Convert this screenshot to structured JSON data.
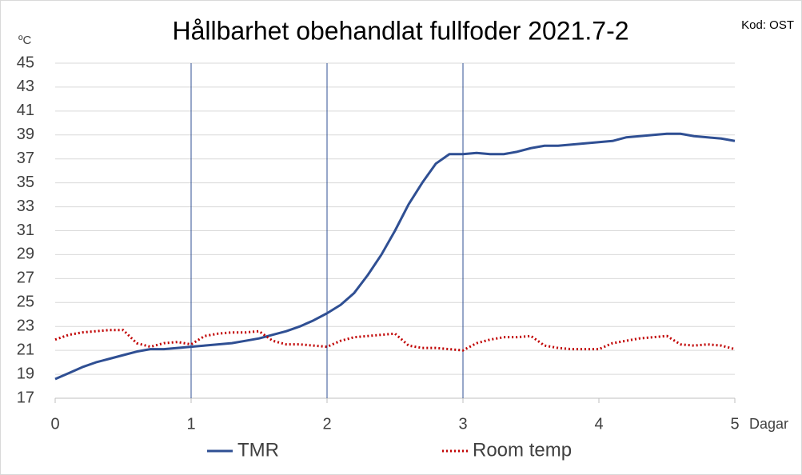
{
  "chart_data": {
    "type": "line",
    "title": "Hållbarhet obehandlat fullfoder 2021.7-2",
    "code_label": "Kod: OST",
    "y_label": "ºC",
    "x_label": "Dagar",
    "x": [
      0,
      0.1,
      0.2,
      0.3,
      0.4,
      0.5,
      0.6,
      0.7,
      0.8,
      0.9,
      1,
      1.1,
      1.2,
      1.3,
      1.4,
      1.5,
      1.6,
      1.7,
      1.8,
      1.9,
      2,
      2.1,
      2.2,
      2.3,
      2.4,
      2.5,
      2.6,
      2.7,
      2.8,
      2.9,
      3,
      3.1,
      3.2,
      3.3,
      3.4,
      3.5,
      3.6,
      3.7,
      3.8,
      3.9,
      4,
      4.1,
      4.2,
      4.3,
      4.4,
      4.5,
      4.6,
      4.7,
      4.8,
      4.9,
      5
    ],
    "series": [
      {
        "name": "TMR",
        "color": "#2f4f93",
        "dash": "solid",
        "values": [
          18.6,
          19.1,
          19.6,
          20.0,
          20.3,
          20.6,
          20.9,
          21.1,
          21.1,
          21.2,
          21.3,
          21.4,
          21.5,
          21.6,
          21.8,
          22.0,
          22.3,
          22.6,
          23.0,
          23.5,
          24.1,
          24.8,
          25.8,
          27.3,
          29.0,
          31.0,
          33.2,
          35.0,
          36.6,
          37.4,
          37.4,
          37.5,
          37.4,
          37.4,
          37.6,
          37.9,
          38.1,
          38.1,
          38.2,
          38.3,
          38.4,
          38.5,
          38.8,
          38.9,
          39.0,
          39.1,
          39.1,
          38.9,
          38.8,
          38.7,
          38.5
        ]
      },
      {
        "name": "Room temp",
        "color": "#c00000",
        "dash": "dotted",
        "values": [
          21.9,
          22.3,
          22.5,
          22.6,
          22.7,
          22.7,
          21.6,
          21.3,
          21.6,
          21.7,
          21.5,
          22.2,
          22.4,
          22.5,
          22.5,
          22.6,
          21.8,
          21.5,
          21.5,
          21.4,
          21.3,
          21.8,
          22.1,
          22.2,
          22.3,
          22.4,
          21.4,
          21.2,
          21.2,
          21.1,
          21.0,
          21.6,
          21.9,
          22.1,
          22.1,
          22.2,
          21.4,
          21.2,
          21.1,
          21.1,
          21.1,
          21.6,
          21.8,
          22.0,
          22.1,
          22.2,
          21.5,
          21.4,
          21.5,
          21.4,
          21.1
        ]
      }
    ],
    "xlim": [
      0,
      5
    ],
    "xticks": [
      0,
      1,
      2,
      3,
      4,
      5
    ],
    "ylim": [
      17,
      45
    ],
    "yticks": [
      17,
      19,
      21,
      23,
      25,
      27,
      29,
      31,
      33,
      35,
      37,
      39,
      41,
      43,
      45
    ],
    "vlines": [
      1,
      2,
      3
    ],
    "vline_color": "#2f4f93",
    "grid": true
  }
}
